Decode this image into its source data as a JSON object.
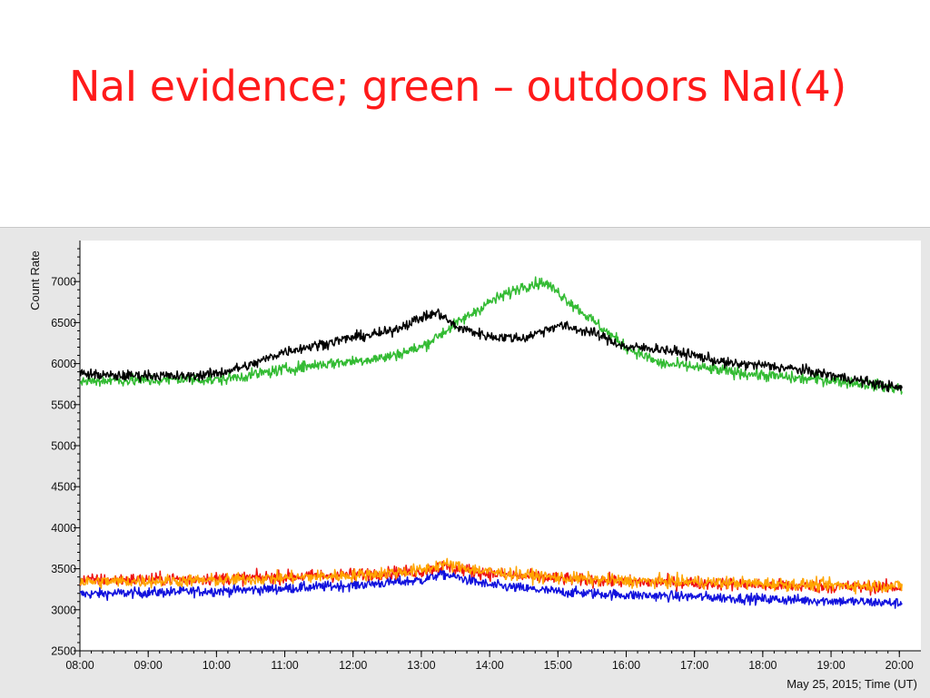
{
  "slide": {
    "title": "NaI evidence; green – outdoors NaI(4)",
    "title_color": "#ff1a1a"
  },
  "chart_data": {
    "type": "line",
    "ylabel": "Count Rate",
    "xlabel": "May 25, 2015; Time (UT)",
    "ylim": [
      2500,
      7500
    ],
    "xlim": [
      8.0,
      20.05
    ],
    "yticks": [
      2500,
      3000,
      3500,
      4000,
      4500,
      5000,
      5500,
      6000,
      6500,
      7000
    ],
    "ytick_labels": [
      "2500",
      "3000",
      "3500",
      "4000",
      "4500",
      "5000",
      "5500",
      "6000",
      "6500",
      "7000"
    ],
    "xticks": [
      8,
      9,
      10,
      11,
      12,
      13,
      14,
      15,
      16,
      17,
      18,
      19,
      20
    ],
    "xtick_labels": [
      "08:00",
      "09:00",
      "10:00",
      "11:00",
      "12:00",
      "13:00",
      "14:00",
      "15:00",
      "16:00",
      "17:00",
      "18:00",
      "19:00",
      "20:00"
    ],
    "grid": false,
    "series": [
      {
        "name": "black",
        "color": "#000000",
        "noise": 45,
        "x": [
          8.0,
          8.5,
          9.0,
          9.5,
          10.0,
          10.5,
          11.0,
          11.5,
          12.0,
          12.5,
          13.0,
          13.25,
          13.5,
          14.0,
          14.5,
          15.0,
          15.5,
          16.0,
          16.5,
          17.0,
          17.5,
          18.0,
          18.5,
          19.0,
          19.5,
          20.0
        ],
        "values": [
          5880,
          5850,
          5860,
          5840,
          5880,
          5980,
          6150,
          6230,
          6320,
          6380,
          6560,
          6620,
          6450,
          6330,
          6310,
          6470,
          6380,
          6200,
          6180,
          6100,
          6000,
          5980,
          5930,
          5860,
          5780,
          5700
        ]
      },
      {
        "name": "green",
        "color": "#33bb33",
        "noise": 50,
        "x": [
          8.0,
          8.5,
          9.0,
          9.5,
          10.0,
          10.5,
          11.0,
          11.5,
          12.0,
          12.5,
          13.0,
          13.5,
          14.0,
          14.5,
          14.8,
          15.0,
          15.5,
          16.0,
          16.5,
          17.0,
          17.5,
          18.0,
          18.5,
          19.0,
          19.5,
          20.0
        ],
        "values": [
          5780,
          5800,
          5790,
          5810,
          5800,
          5860,
          5930,
          5990,
          6030,
          6080,
          6200,
          6480,
          6750,
          6950,
          6990,
          6870,
          6530,
          6200,
          6000,
          5960,
          5900,
          5860,
          5820,
          5800,
          5750,
          5700
        ]
      },
      {
        "name": "red",
        "color": "#ee1111",
        "noise": 55,
        "x": [
          8.0,
          9.0,
          10.0,
          11.0,
          12.0,
          13.0,
          13.3,
          14.0,
          15.0,
          16.0,
          17.0,
          18.0,
          19.0,
          20.0
        ],
        "values": [
          3360,
          3370,
          3380,
          3400,
          3430,
          3470,
          3530,
          3440,
          3380,
          3340,
          3330,
          3300,
          3280,
          3270
        ]
      },
      {
        "name": "orange",
        "color": "#ffa500",
        "noise": 55,
        "x": [
          8.0,
          9.0,
          10.0,
          11.0,
          12.0,
          13.0,
          13.3,
          14.0,
          15.0,
          16.0,
          17.0,
          18.0,
          19.0,
          20.0
        ],
        "values": [
          3340,
          3350,
          3360,
          3390,
          3420,
          3480,
          3560,
          3460,
          3390,
          3350,
          3340,
          3320,
          3300,
          3290
        ]
      },
      {
        "name": "blue",
        "color": "#1111dd",
        "noise": 45,
        "x": [
          8.0,
          9.0,
          10.0,
          11.0,
          12.0,
          13.0,
          13.3,
          14.0,
          15.0,
          16.0,
          17.0,
          18.0,
          19.0,
          20.0
        ],
        "values": [
          3190,
          3210,
          3230,
          3260,
          3300,
          3360,
          3440,
          3300,
          3220,
          3180,
          3160,
          3130,
          3110,
          3080
        ]
      }
    ]
  }
}
